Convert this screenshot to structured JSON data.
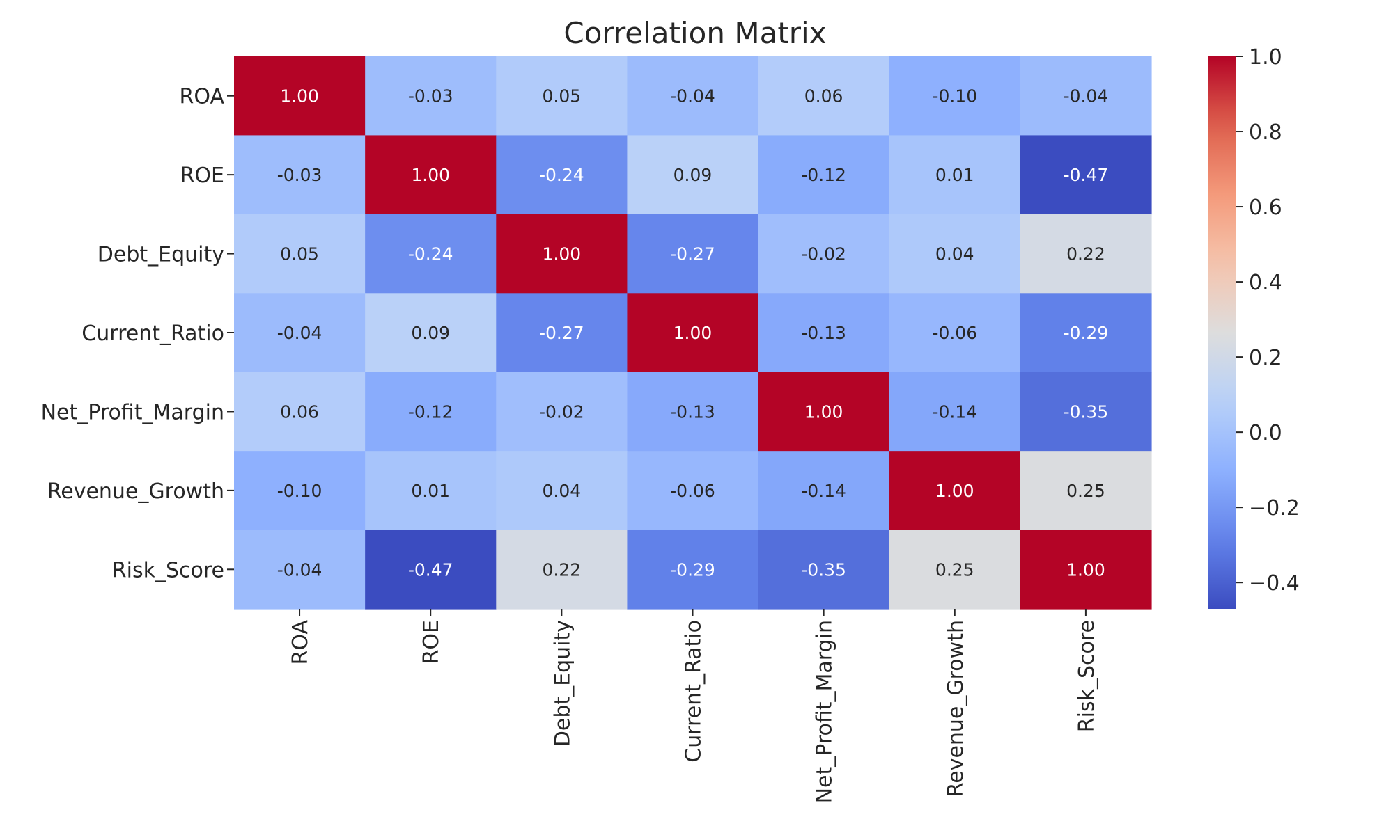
{
  "chart_data": {
    "type": "heatmap",
    "title": "Correlation Matrix",
    "xlabel": "",
    "ylabel": "",
    "variables": [
      "ROA",
      "ROE",
      "Debt_Equity",
      "Current_Ratio",
      "Net_Profit_Margin",
      "Revenue_Growth",
      "Risk_Score"
    ],
    "matrix": [
      [
        1.0,
        -0.03,
        0.05,
        -0.04,
        0.06,
        -0.1,
        -0.04
      ],
      [
        -0.03,
        1.0,
        -0.24,
        0.09,
        -0.12,
        0.01,
        -0.47
      ],
      [
        0.05,
        -0.24,
        1.0,
        -0.27,
        -0.02,
        0.04,
        0.22
      ],
      [
        -0.04,
        0.09,
        -0.27,
        1.0,
        -0.13,
        -0.06,
        -0.29
      ],
      [
        0.06,
        -0.12,
        -0.02,
        -0.13,
        1.0,
        -0.14,
        -0.35
      ],
      [
        -0.1,
        0.01,
        0.04,
        -0.06,
        -0.14,
        1.0,
        0.25
      ],
      [
        -0.04,
        -0.47,
        0.22,
        -0.29,
        -0.35,
        0.25,
        1.0
      ]
    ],
    "value_format": "0.00",
    "colormap": "coolwarm",
    "colorbar": {
      "vmin": -0.47,
      "vmax": 1.0,
      "ticks": [
        -0.4,
        -0.2,
        0.0,
        0.2,
        0.4,
        0.6,
        0.8,
        1.0
      ],
      "tick_labels": [
        "−0.4",
        "−0.2",
        "0.0",
        "0.2",
        "0.4",
        "0.6",
        "0.8",
        "1.0"
      ]
    }
  }
}
